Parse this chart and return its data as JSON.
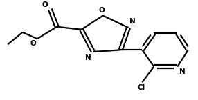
{
  "background_color": "#ffffff",
  "line_color": "#000000",
  "atom_color": "#000000",
  "line_width": 1.6,
  "figsize": [
    2.86,
    1.45
  ],
  "dpi": 100,
  "font_size": 7.5,
  "xlim": [
    0,
    10
  ],
  "ylim": [
    0,
    5
  ]
}
